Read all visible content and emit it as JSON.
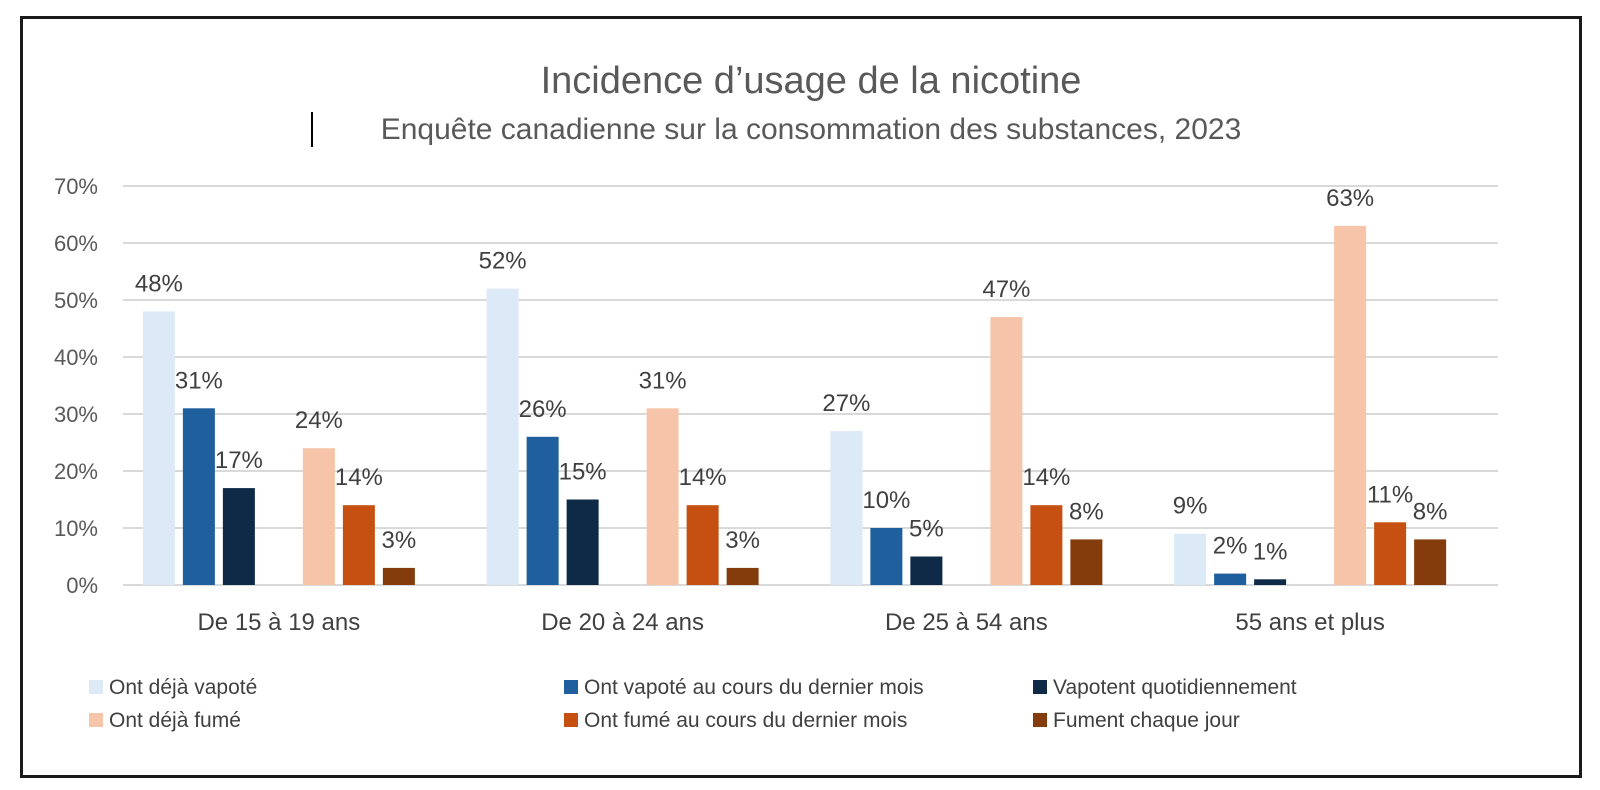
{
  "chart_data": {
    "type": "bar",
    "title": "Incidence d’usage de la nicotine",
    "subtitle": "Enquête canadienne sur la consommation des substances, 2023",
    "categories": [
      "De 15 à 19 ans",
      "De 20 à 24 ans",
      "De 25 à 54 ans",
      "55 ans et plus"
    ],
    "ylim": [
      0,
      70
    ],
    "yticks": [
      "0%",
      "10%",
      "20%",
      "30%",
      "40%",
      "50%",
      "60%",
      "70%"
    ],
    "grid": true,
    "legend": "bottom",
    "series": [
      {
        "name": "Ont déjà vapoté",
        "color": "#dce9f6",
        "values": [
          48,
          52,
          27,
          9
        ],
        "labels": [
          "48%",
          "52%",
          "27%",
          "9%"
        ]
      },
      {
        "name": "Ont vapoté au cours du dernier mois",
        "color": "#1f5f9e",
        "values": [
          31,
          26,
          10,
          2
        ],
        "labels": [
          "31%",
          "26%",
          "10%",
          "2%"
        ]
      },
      {
        "name": "Vapotent quotidiennement",
        "color": "#0f2a47",
        "values": [
          17,
          15,
          5,
          1
        ],
        "labels": [
          "17%",
          "15%",
          "5%",
          "1%"
        ]
      },
      {
        "name": "Ont déjà fumé",
        "color": "#f6c4a8",
        "values": [
          24,
          31,
          47,
          63
        ],
        "labels": [
          "24%",
          "31%",
          "47%",
          "63%"
        ]
      },
      {
        "name": "Ont fumé au cours du dernier mois",
        "color": "#c55011",
        "values": [
          14,
          14,
          14,
          11
        ],
        "labels": [
          "14%",
          "14%",
          "14%",
          "11%"
        ]
      },
      {
        "name": "Fument chaque jour",
        "color": "#843c0c",
        "values": [
          3,
          3,
          8,
          8
        ],
        "labels": [
          "3%",
          "3%",
          "8%",
          "8%"
        ]
      }
    ]
  }
}
